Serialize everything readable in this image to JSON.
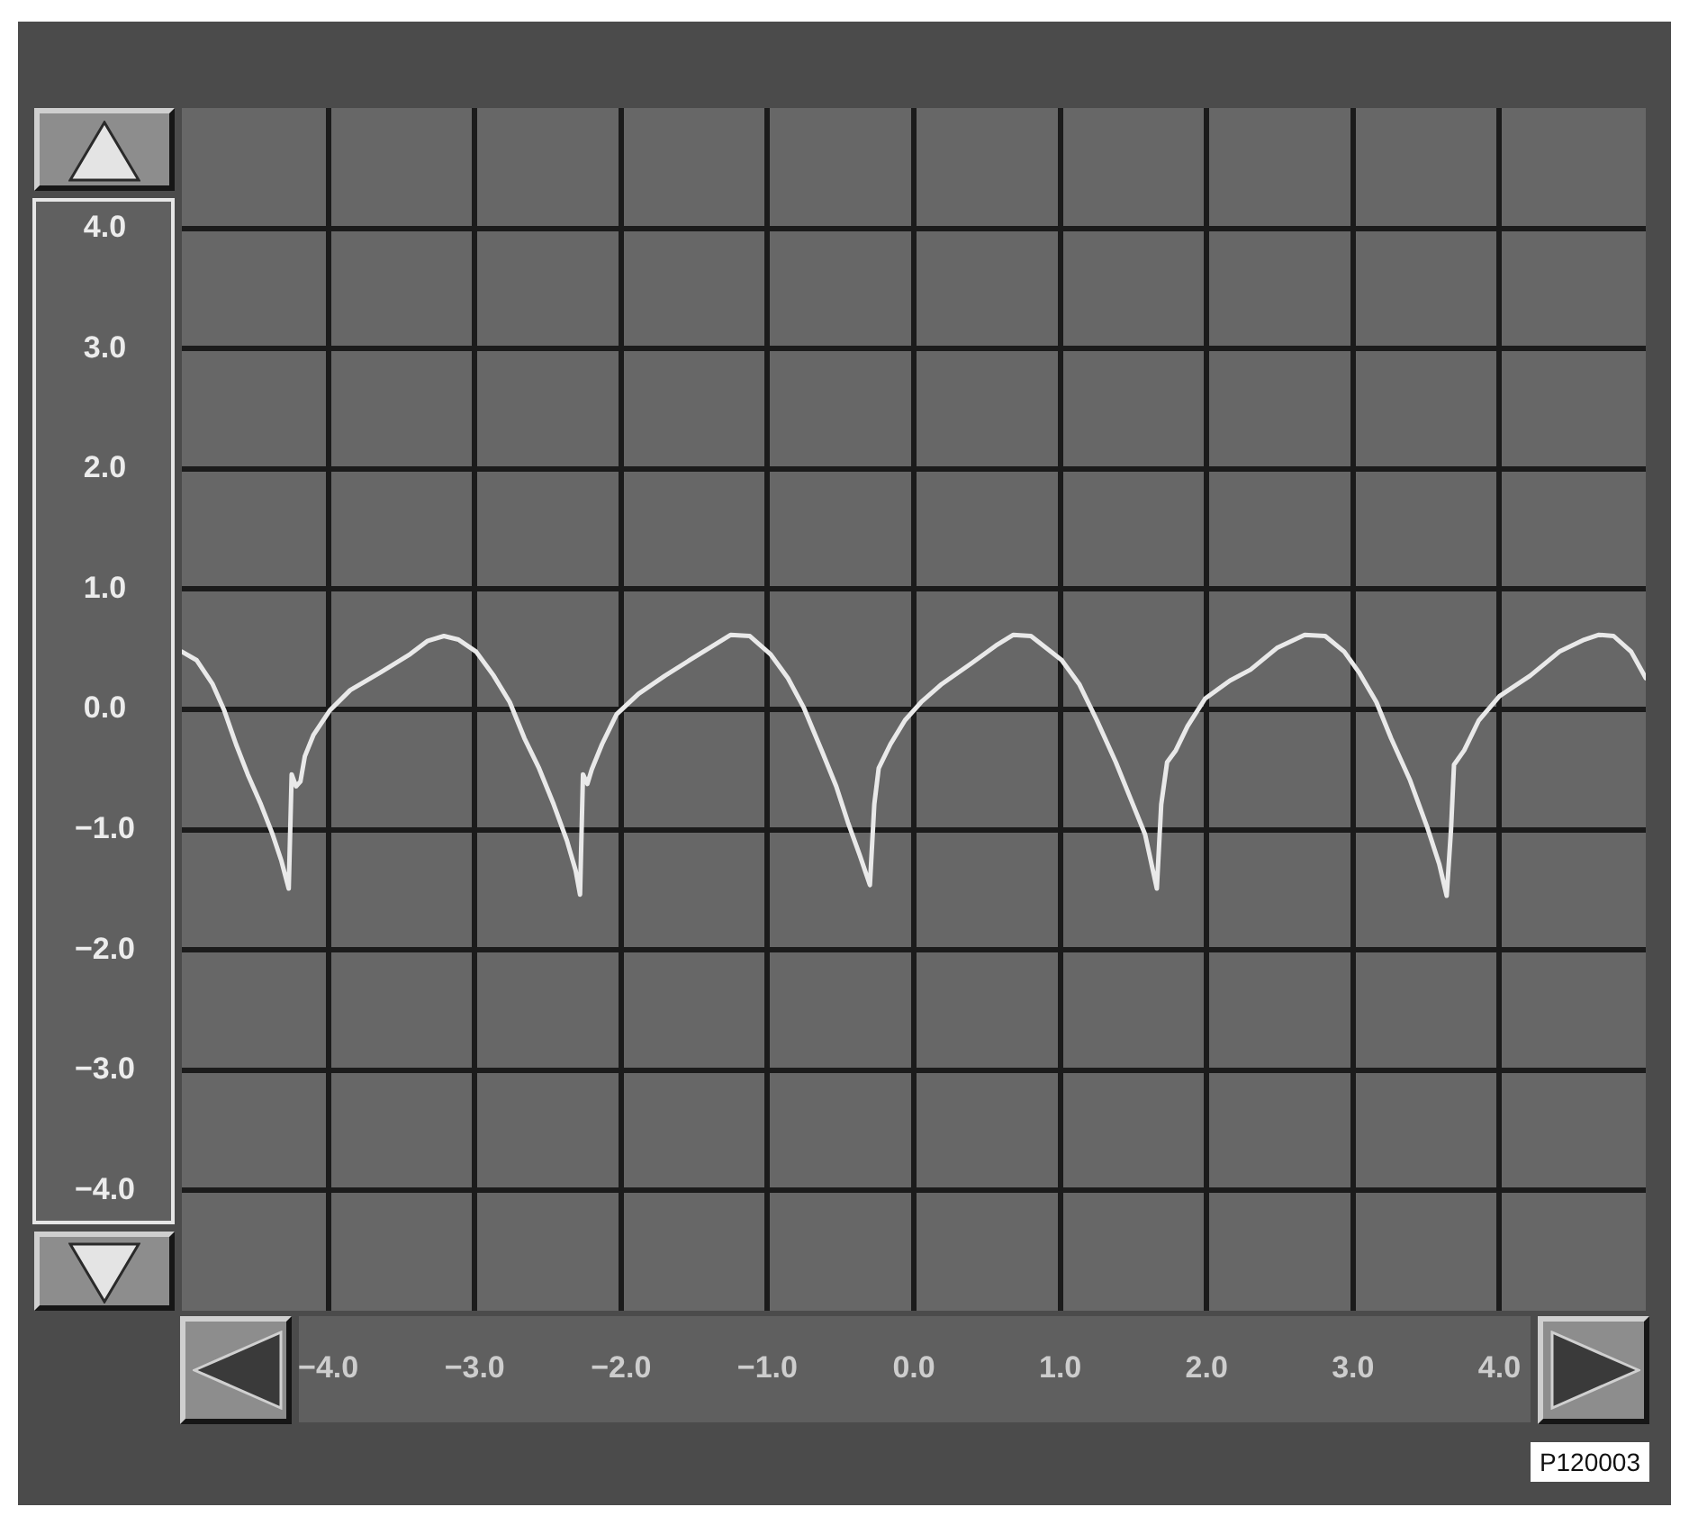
{
  "chart_data": {
    "type": "line",
    "color": "#e9e9e9",
    "marker": "none",
    "line_style": "solid",
    "grid": true,
    "legend": false,
    "x": [
      -5.0,
      -4.9,
      -4.79,
      -4.71,
      -4.63,
      -4.55,
      -4.46,
      -4.38,
      -4.32,
      -4.27,
      -4.25,
      -4.22,
      -4.19,
      -4.16,
      -4.1,
      -3.99,
      -3.85,
      -3.64,
      -3.44,
      -3.32,
      -3.21,
      -3.11,
      -2.99,
      -2.87,
      -2.76,
      -2.66,
      -2.56,
      -2.46,
      -2.37,
      -2.31,
      -2.28,
      -2.26,
      -2.23,
      -2.2,
      -2.13,
      -2.03,
      -1.88,
      -1.7,
      -1.53,
      -1.37,
      -1.25,
      -1.12,
      -0.98,
      -0.86,
      -0.75,
      -0.63,
      -0.53,
      -0.45,
      -0.37,
      -0.3,
      -0.27,
      -0.24,
      -0.16,
      -0.06,
      0.05,
      0.19,
      0.39,
      0.56,
      0.68,
      0.8,
      1.01,
      1.13,
      1.25,
      1.38,
      1.48,
      1.58,
      1.66,
      1.69,
      1.73,
      1.79,
      1.87,
      1.99,
      2.16,
      2.3,
      2.48,
      2.67,
      2.81,
      2.94,
      3.04,
      3.16,
      3.26,
      3.39,
      3.51,
      3.59,
      3.64,
      3.67,
      3.69,
      3.76,
      3.86,
      4.0,
      4.21,
      4.41,
      4.58,
      4.68,
      4.78,
      4.9,
      5.0
    ],
    "values": [
      0.48,
      0.41,
      0.21,
      -0.01,
      -0.29,
      -0.54,
      -0.79,
      -1.04,
      -1.26,
      -1.49,
      -0.54,
      -0.64,
      -0.6,
      -0.39,
      -0.21,
      -0.01,
      0.16,
      0.31,
      0.46,
      0.57,
      0.61,
      0.58,
      0.48,
      0.28,
      0.06,
      -0.24,
      -0.49,
      -0.79,
      -1.09,
      -1.34,
      -1.54,
      -0.54,
      -0.62,
      -0.5,
      -0.29,
      -0.04,
      0.13,
      0.28,
      0.41,
      0.53,
      0.62,
      0.61,
      0.46,
      0.26,
      0.01,
      -0.34,
      -0.64,
      -0.94,
      -1.21,
      -1.46,
      -0.79,
      -0.49,
      -0.29,
      -0.09,
      0.06,
      0.21,
      0.38,
      0.53,
      0.62,
      0.61,
      0.41,
      0.21,
      -0.09,
      -0.44,
      -0.74,
      -1.04,
      -1.49,
      -0.79,
      -0.44,
      -0.34,
      -0.14,
      0.09,
      0.24,
      0.33,
      0.51,
      0.62,
      0.61,
      0.48,
      0.31,
      0.06,
      -0.24,
      -0.59,
      -0.99,
      -1.29,
      -1.55,
      -0.99,
      -0.46,
      -0.34,
      -0.09,
      0.11,
      0.28,
      0.48,
      0.58,
      0.62,
      0.61,
      0.48,
      0.26
    ],
    "xlim": [
      -5,
      5
    ],
    "ylim": [
      -5,
      5
    ],
    "xticks": [
      {
        "value": -4,
        "label": "−4.0"
      },
      {
        "value": -3,
        "label": "−3.0"
      },
      {
        "value": -2,
        "label": "−2.0"
      },
      {
        "value": -1,
        "label": "−1.0"
      },
      {
        "value": 0,
        "label": "0.0"
      },
      {
        "value": 1,
        "label": "1.0"
      },
      {
        "value": 2,
        "label": "2.0"
      },
      {
        "value": 3,
        "label": "3.0"
      },
      {
        "value": 4,
        "label": "4.0"
      }
    ],
    "yticks": [
      {
        "value": -4,
        "label": "−4.0"
      },
      {
        "value": -3,
        "label": "−3.0"
      },
      {
        "value": -2,
        "label": "−2.0"
      },
      {
        "value": -1,
        "label": "−1.0"
      },
      {
        "value": 0,
        "label": "0.0"
      },
      {
        "value": 1,
        "label": "1.0"
      },
      {
        "value": 2,
        "label": "2.0"
      },
      {
        "value": 3,
        "label": "3.0"
      },
      {
        "value": 4,
        "label": "4.0"
      }
    ],
    "annotations": [
      "P120003"
    ]
  }
}
